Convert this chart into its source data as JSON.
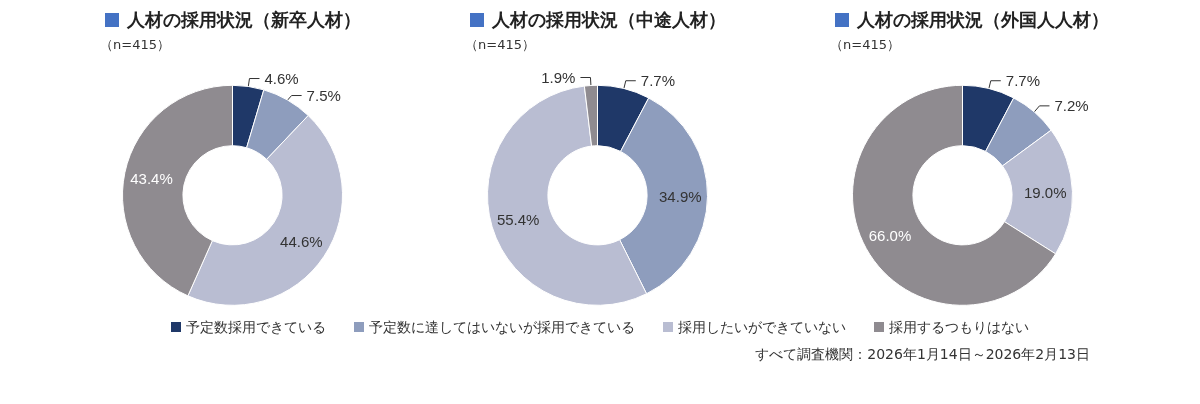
{
  "chart_data": [
    {
      "type": "donut",
      "title": "人材の採用状況（新卒人材）",
      "subtitle": "（n=415）",
      "categories": [
        "予定数採用できている",
        "予定数に達してはいないが採用できている",
        "採用したいができていない",
        "採用するつもりはない"
      ],
      "values": [
        4.6,
        7.5,
        44.6,
        43.4
      ],
      "value_labels": [
        "4.6%",
        "7.5%",
        "44.6%",
        "43.4%"
      ],
      "colors": [
        "#1f3868",
        "#8e9dbd",
        "#b9bdd2",
        "#8f8b90"
      ],
      "legend": "bottom"
    },
    {
      "type": "donut",
      "title": "人材の採用状況（中途人材）",
      "subtitle": "（n=415）",
      "categories": [
        null,
        null,
        null,
        null
      ],
      "values": [
        7.7,
        34.9,
        55.4,
        1.9
      ],
      "value_labels": [
        "7.7%",
        "34.9%",
        "55.4%",
        "1.9%"
      ],
      "colors": [
        "#1f3868",
        "#8e9dbd",
        "#b9bdd2",
        "#8f8b90"
      ]
    },
    {
      "type": "donut",
      "title": "人材の採用状況（外国人人材）",
      "subtitle": "（n=415）",
      "categories": [
        null,
        null,
        null,
        null
      ],
      "values": [
        7.7,
        7.2,
        19.0,
        66.0
      ],
      "value_labels": [
        "7.7%",
        "7.2%",
        "19.0%",
        "66.0%"
      ],
      "colors": [
        "#1f3868",
        "#8e9dbd",
        "#b9bdd2",
        "#8f8b90"
      ],
      "annotations": [
        "すべて調査機関：2026年1月14日～2026年2月13日"
      ]
    }
  ]
}
